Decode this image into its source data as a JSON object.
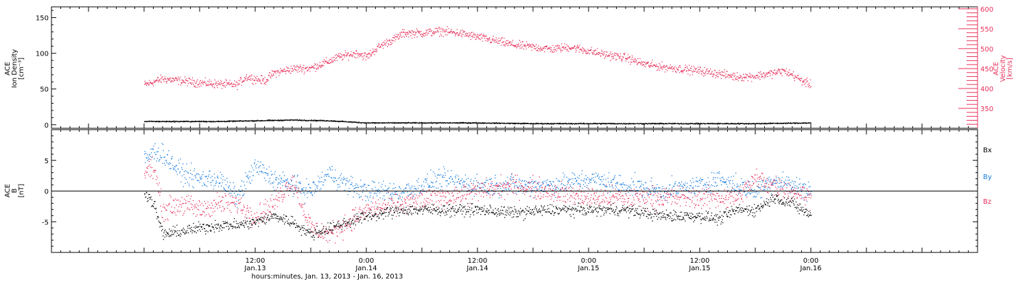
{
  "chart_data": {
    "type": "scatter",
    "x_range_hours": [
      -10,
      90
    ],
    "xlabel": "hours:minutes, Jan. 13, 2013 - Jan. 16, 2013",
    "xticks": [
      {
        "x": 12,
        "time": "12:00",
        "date": "Jan.13"
      },
      {
        "x": 24,
        "time": "0:00",
        "date": "Jan.14"
      },
      {
        "x": 36,
        "time": "12:00",
        "date": "Jan.14"
      },
      {
        "x": 48,
        "time": "0:00",
        "date": "Jan.15"
      },
      {
        "x": 60,
        "time": "12:00",
        "date": "Jan.15"
      },
      {
        "x": 72,
        "time": "0:00",
        "date": "Jan.16"
      }
    ],
    "panels": [
      {
        "name": "plasma",
        "ylabel_left": [
          "ACE",
          "Ion Density",
          "[cm⁻³]"
        ],
        "ylabel_right": [
          "ACE",
          "Velocity",
          "[km/s]"
        ],
        "ylim_left": [
          -5,
          165
        ],
        "yticks_left": [
          0,
          50,
          100,
          150
        ],
        "ylim_right": [
          300,
          605
        ],
        "yticks_right": [
          350,
          400,
          450,
          500,
          550,
          600
        ],
        "series": [
          {
            "color": "#e8305a",
            "axis": "right",
            "x": [
              0,
              2,
              4,
              6,
              8,
              10,
              11,
              12,
              13,
              14,
              15,
              16,
              18,
              20,
              21,
              22,
              23,
              24,
              25,
              26,
              27,
              28,
              30,
              32,
              34,
              36,
              38,
              40,
              42,
              44,
              46,
              48,
              50,
              52,
              54,
              56,
              58,
              60,
              62,
              64,
              66,
              68,
              69,
              70,
              71,
              72
            ],
            "y": [
              410,
              425,
              420,
              415,
              412,
              410,
              430,
              425,
              420,
              440,
              445,
              450,
              452,
              470,
              480,
              485,
              490,
              480,
              500,
              515,
              525,
              540,
              540,
              545,
              540,
              530,
              520,
              510,
              505,
              500,
              505,
              495,
              485,
              478,
              462,
              455,
              450,
              445,
              438,
              430,
              432,
              440,
              445,
              435,
              420,
              410
            ]
          },
          {
            "color": "#000000",
            "axis": "left",
            "x": [
              0,
              4,
              8,
              12,
              16,
              20,
              24,
              30,
              36,
              42,
              48,
              54,
              60,
              66,
              72
            ],
            "y": [
              5,
              5,
              5,
              6,
              7,
              6,
              3,
              3,
              3,
              2,
              2,
              2,
              2,
              2,
              3
            ]
          }
        ]
      },
      {
        "name": "magnetic field",
        "ylabel_left": [
          "ACE",
          "B",
          "[nT]"
        ],
        "ylim": [
          -10,
          10
        ],
        "yticks": [
          -5,
          0,
          5
        ],
        "zero_line": true,
        "legend": {
          "placement": "right",
          "entries": [
            "Bx",
            "By",
            "Bz"
          ]
        },
        "series": [
          {
            "name": "Bx",
            "color": "#000000",
            "x": [
              0,
              1,
              2,
              4,
              6,
              8,
              10,
              12,
              14,
              16,
              18,
              20,
              22,
              24,
              28,
              32,
              36,
              40,
              44,
              48,
              52,
              56,
              60,
              62,
              64,
              66,
              68,
              70,
              72
            ],
            "y": [
              0,
              -2,
              -7,
              -6.5,
              -6,
              -5.5,
              -5.5,
              -5,
              -4,
              -5,
              -7,
              -6,
              -5,
              -4,
              -3,
              -3,
              -3,
              -3.5,
              -3,
              -3,
              -3,
              -4,
              -4,
              -4.5,
              -3,
              -3,
              -1,
              -2,
              -4
            ]
          },
          {
            "name": "By",
            "color": "#1a7ee0",
            "x": [
              0,
              1,
              2,
              4,
              6,
              8,
              10,
              12,
              14,
              16,
              18,
              20,
              22,
              24,
              28,
              32,
              36,
              40,
              44,
              48,
              52,
              56,
              60,
              62,
              64,
              66,
              68,
              70,
              72
            ],
            "y": [
              5,
              6.5,
              6,
              3,
              2,
              2,
              -1,
              4,
              2,
              1,
              0,
              3,
              1,
              0,
              0,
              2,
              1,
              1,
              1,
              2,
              1,
              0,
              1,
              2,
              1,
              0,
              2,
              1,
              0
            ]
          },
          {
            "name": "Bz",
            "color": "#e8305a",
            "x": [
              0,
              1,
              2,
              4,
              6,
              8,
              10,
              12,
              14,
              16,
              18,
              20,
              22,
              24,
              28,
              32,
              36,
              40,
              44,
              48,
              52,
              56,
              60,
              62,
              64,
              66,
              68,
              70,
              72
            ],
            "y": [
              3,
              4,
              -3,
              -2,
              -3,
              -2,
              -2,
              -4,
              -2,
              2,
              -6,
              -7,
              -5,
              -3,
              -2,
              -1,
              0,
              1,
              0,
              -1,
              -1,
              -1,
              -1,
              -1,
              -1,
              2,
              1,
              0,
              -1
            ]
          }
        ]
      }
    ]
  }
}
